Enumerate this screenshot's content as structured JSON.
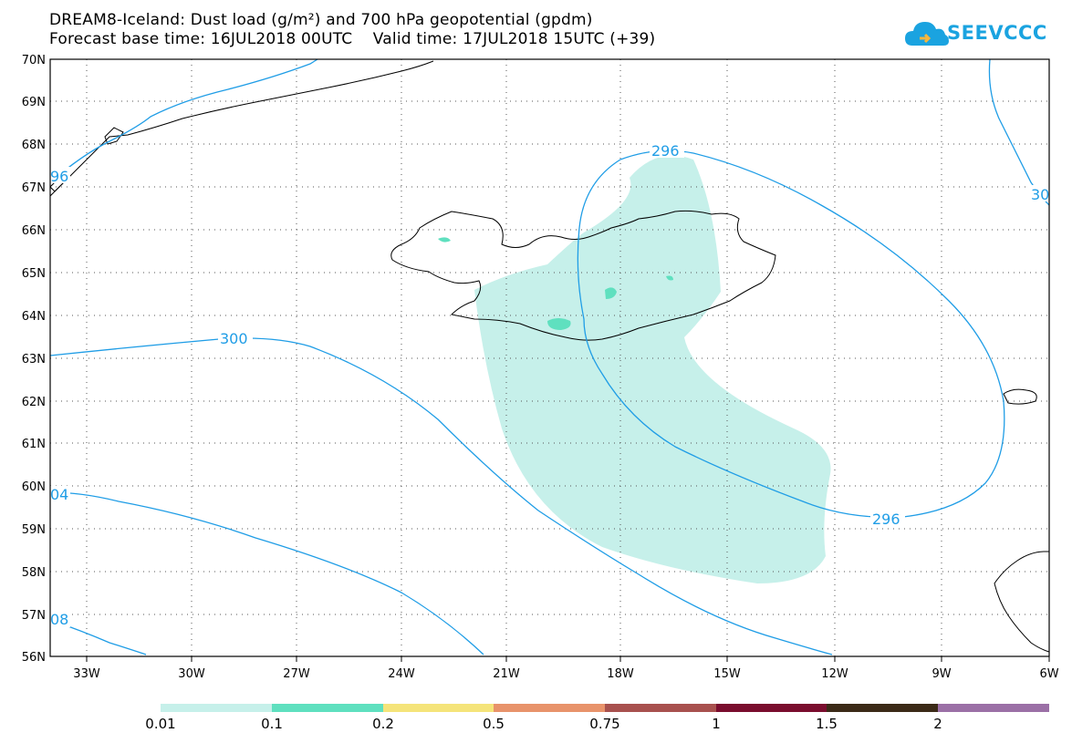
{
  "header": {
    "title_line1": "DREAM8-Iceland: Dust load (g/m²) and 700 hPa geopotential (gpdm)",
    "title_line2": "Forecast base time: 16JUL2018 00UTC    Valid time: 17JUL2018 15UTC (+39)",
    "logo_text": "SEEVCCC",
    "logo_icon": "cloud-icon"
  },
  "map": {
    "lat_labels": [
      "70N",
      "69N",
      "68N",
      "67N",
      "66N",
      "65N",
      "64N",
      "63N",
      "62N",
      "61N",
      "60N",
      "59N",
      "58N",
      "57N",
      "56N"
    ],
    "lon_labels": [
      "33W",
      "30W",
      "27W",
      "24W",
      "21W",
      "18W",
      "15W",
      "12W",
      "9W",
      "6W"
    ],
    "contour_labels": [
      "296",
      "300",
      "296",
      "04",
      "08",
      "96",
      "30"
    ],
    "contour_color": "#1f9de6",
    "dust_colors": {
      "low": "#c6f0ea",
      "mid": "#5fe0bf"
    }
  },
  "colorbar": {
    "labels": [
      "0.01",
      "0.1",
      "0.2",
      "0.5",
      "0.75",
      "1",
      "1.5",
      "2"
    ],
    "colors": [
      "#c6f0ea",
      "#5fe0bf",
      "#f5e47a",
      "#e8936b",
      "#a8514e",
      "#7a0d2e",
      "#3b2a17",
      "#9b70a6"
    ]
  }
}
